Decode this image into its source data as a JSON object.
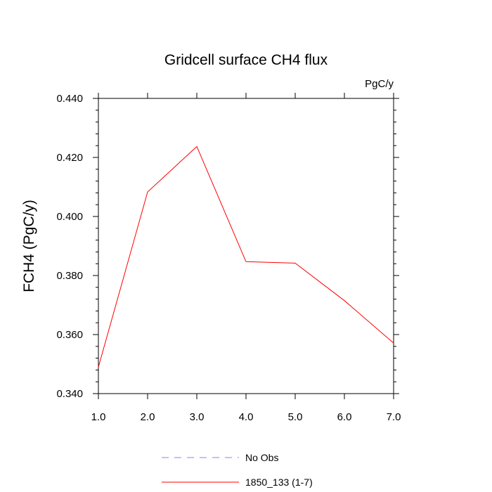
{
  "chart_data": {
    "type": "line",
    "title": "Gridcell surface CH4 flux",
    "units": "PgC/y",
    "xlabel": "",
    "ylabel": "FCH4  (PgC/y)",
    "xlim": [
      1.0,
      7.0
    ],
    "ylim": [
      0.34,
      0.44
    ],
    "xticks": [
      "1.0",
      "2.0",
      "3.0",
      "4.0",
      "5.0",
      "6.0",
      "7.0"
    ],
    "yticks": [
      "0.340",
      "0.360",
      "0.380",
      "0.400",
      "0.420",
      "0.440"
    ],
    "grid": false,
    "legend_position": "bottom",
    "x": [
      1,
      2,
      3,
      4,
      5,
      6,
      7
    ],
    "series": [
      {
        "name": "1850_133 (1-7)",
        "color": "#ff0000",
        "style": "solid",
        "values": [
          0.349,
          0.4083,
          0.4237,
          0.3847,
          0.3842,
          0.3715,
          0.3571
        ]
      }
    ],
    "legend": [
      {
        "label": "No Obs",
        "color": "#8080ff",
        "style": "dashed"
      },
      {
        "label": "1850_133 (1-7)",
        "color": "#ff0000",
        "style": "solid"
      }
    ]
  }
}
